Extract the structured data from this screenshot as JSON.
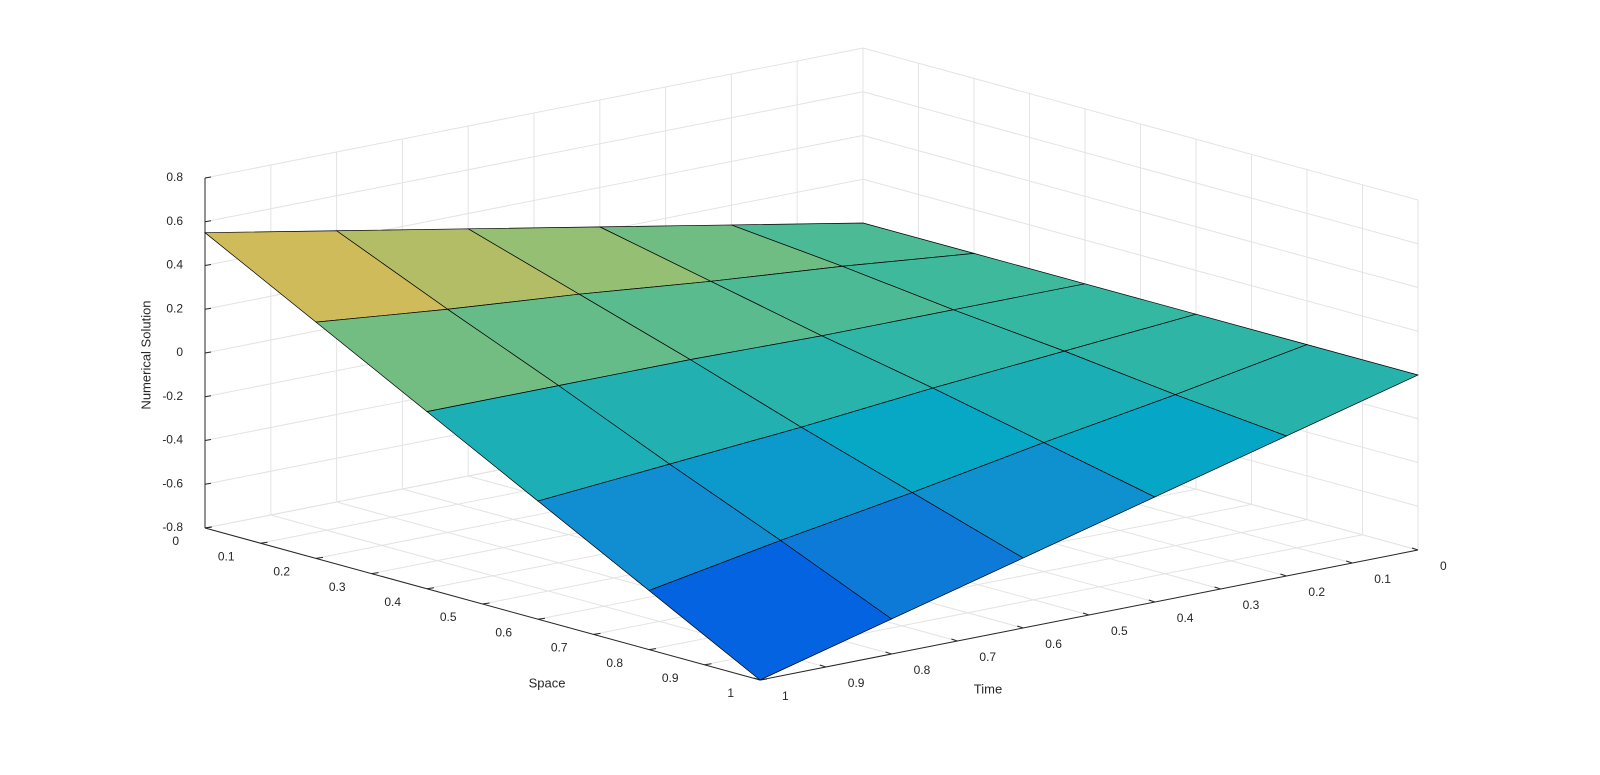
{
  "chart_data": {
    "type": "surface",
    "xlabel": "Space",
    "ylabel": "Time",
    "zlabel": "Numerical Solution",
    "x": [
      0,
      0.2,
      0.4,
      0.6,
      0.8,
      1
    ],
    "y": [
      0,
      0.2,
      0.4,
      0.6,
      0.8,
      1
    ],
    "z": [
      [
        0,
        0,
        0,
        0,
        0,
        0
      ],
      [
        0.11,
        0.06,
        0,
        -0.05,
        -0.11,
        -0.16
      ],
      [
        0.22,
        0.11,
        0,
        -0.1,
        -0.21,
        -0.32
      ],
      [
        0.33,
        0.17,
        0.01,
        -0.16,
        -0.32,
        -0.48
      ],
      [
        0.44,
        0.22,
        0.01,
        -0.21,
        -0.42,
        -0.64
      ],
      [
        0.55,
        0.28,
        0.01,
        -0.26,
        -0.53,
        -0.8
      ]
    ],
    "xlim": [
      0,
      1
    ],
    "ylim": [
      0,
      1
    ],
    "zlim": [
      -0.8,
      0.8
    ],
    "xticks": [
      0,
      0.1,
      0.2,
      0.3,
      0.4,
      0.5,
      0.6,
      0.7,
      0.8,
      0.9,
      1
    ],
    "yticks": [
      0,
      0.1,
      0.2,
      0.3,
      0.4,
      0.5,
      0.6,
      0.7,
      0.8,
      0.9,
      1
    ],
    "zticks": [
      -0.8,
      -0.6,
      -0.4,
      -0.2,
      0,
      0.2,
      0.4,
      0.6,
      0.8
    ],
    "grid": true,
    "colormap": "parula",
    "edge_color": "#000000"
  }
}
